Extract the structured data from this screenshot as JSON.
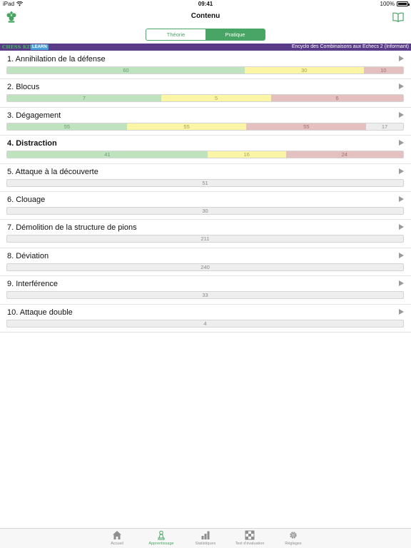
{
  "status": {
    "device": "iPad",
    "time": "09:41",
    "battery": "100%"
  },
  "nav": {
    "title": "Contenu"
  },
  "segment": {
    "theory": "Théorie",
    "practice": "Pratique",
    "active": "practice"
  },
  "banner": {
    "brand": "CHESS KING",
    "learn": "LEARN",
    "book": "Encyclo des Combinaisons aux Echecs 2 (Informant)"
  },
  "colors": {
    "accent": "#48a565",
    "banner": "#5a3b88",
    "green": "#bfe3bf",
    "yellow": "#fbf6a6",
    "red": "#e5c0c0",
    "gray": "#ededed"
  },
  "chapters": [
    {
      "title": "1. Annihilation de la défense",
      "bold": false,
      "green": 60,
      "yellow": 30,
      "red": 10,
      "none": null
    },
    {
      "title": "2. Blocus",
      "bold": false,
      "green": 7,
      "yellow": 5,
      "red": 6,
      "none": null
    },
    {
      "title": "3. Dégagement",
      "bold": false,
      "green": 55,
      "yellow": 55,
      "red": 55,
      "none": 17
    },
    {
      "title": "4. Distraction",
      "bold": true,
      "green": 41,
      "yellow": 16,
      "red": 24,
      "none": null
    },
    {
      "title": "5. Attaque à la découverte",
      "bold": false,
      "green": null,
      "yellow": null,
      "red": null,
      "none": 51
    },
    {
      "title": "6. Clouage",
      "bold": false,
      "green": null,
      "yellow": null,
      "red": null,
      "none": 30
    },
    {
      "title": "7. Démolition de la structure de pions",
      "bold": false,
      "green": null,
      "yellow": null,
      "red": null,
      "none": 211
    },
    {
      "title": "8. Déviation",
      "bold": false,
      "green": null,
      "yellow": null,
      "red": null,
      "none": 240
    },
    {
      "title": "9. Interférence",
      "bold": false,
      "green": null,
      "yellow": null,
      "red": null,
      "none": 33
    },
    {
      "title": "10. Attaque double",
      "bold": false,
      "green": null,
      "yellow": null,
      "red": null,
      "none": 4
    }
  ],
  "tabs": [
    {
      "label": "Accueil",
      "icon": "home-icon",
      "active": false
    },
    {
      "label": "Apprentissage",
      "icon": "pawn-icon",
      "active": true
    },
    {
      "label": "Statistiques",
      "icon": "bar-chart-icon",
      "active": false
    },
    {
      "label": "Test d'évaluation",
      "icon": "checker-icon",
      "active": false
    },
    {
      "label": "Réglages",
      "icon": "gear-icon",
      "active": false
    }
  ]
}
